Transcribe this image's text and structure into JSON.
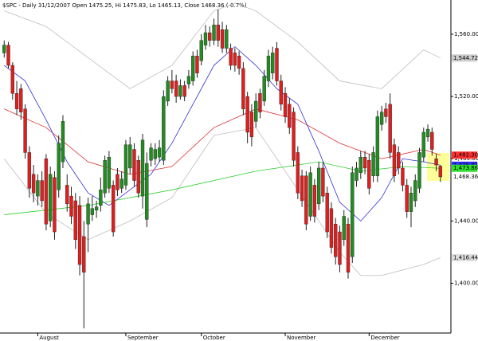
{
  "chart_data": {
    "type": "candlestick",
    "title": "$SPC - Daily 31/12/2007 Open 1475.25, Hi 1475.83, Lo 1465.13, Close 1468.36 (-0.7%)",
    "up_color": "#228b22",
    "down_color": "#dd1f1f",
    "open": [
      1548,
      1553,
      1540,
      1522,
      1525,
      1512,
      1484,
      1470,
      1456,
      1466,
      1480,
      1440,
      1468,
      1460,
      1478,
      1463,
      1456,
      1453,
      1450,
      1430,
      1438,
      1444,
      1447,
      1450,
      1458,
      1461,
      1463,
      1470,
      1461,
      1463,
      1474,
      1486,
      1479,
      1456,
      1441,
      1479,
      1480,
      1481,
      1479,
      1517,
      1530,
      1530,
      1520,
      1527,
      1528,
      1530,
      1546,
      1543,
      1553,
      1561,
      1556,
      1566,
      1563,
      1551,
      1551,
      1548,
      1546,
      1538,
      1520,
      1510,
      1504,
      1522,
      1517,
      1530,
      1535,
      1551,
      1530,
      1522,
      1515,
      1510,
      1484,
      1469,
      1469,
      1443,
      1463,
      1451,
      1474,
      1458,
      1448,
      1438,
      1433,
      1428,
      1438,
      1417,
      1466,
      1471,
      1481,
      1479,
      1469,
      1469,
      1502,
      1512,
      1515,
      1489,
      1484,
      1474,
      1463,
      1446,
      1453,
      1461,
      1481,
      1494,
      1497,
      1480,
      1475.25
    ],
    "high": [
      1556,
      1555,
      1542,
      1530,
      1528,
      1515,
      1488,
      1476,
      1470,
      1472,
      1483,
      1475,
      1472,
      1495,
      1508,
      1470,
      1462,
      1458,
      1456,
      1440,
      1455,
      1456,
      1453,
      1468,
      1482,
      1485,
      1466,
      1474,
      1472,
      1492,
      1494,
      1490,
      1482,
      1496,
      1484,
      1490,
      1490,
      1492,
      1524,
      1533,
      1537,
      1534,
      1531,
      1530,
      1537,
      1549,
      1550,
      1560,
      1566,
      1565,
      1570,
      1576,
      1568,
      1566,
      1554,
      1551,
      1549,
      1542,
      1523,
      1515,
      1522,
      1525,
      1537,
      1550,
      1552,
      1555,
      1534,
      1526,
      1519,
      1513,
      1488,
      1473,
      1472,
      1475,
      1467,
      1478,
      1478,
      1462,
      1452,
      1442,
      1437,
      1447,
      1442,
      1475,
      1478,
      1485,
      1485,
      1483,
      1488,
      1511,
      1514,
      1516,
      1522,
      1493,
      1488,
      1478,
      1467,
      1462,
      1470,
      1487,
      1500,
      1502,
      1500,
      1483,
      1475.83
    ],
    "low": [
      1545,
      1538,
      1518,
      1508,
      1505,
      1480,
      1455,
      1452,
      1450,
      1449,
      1434,
      1436,
      1428,
      1455,
      1474,
      1446,
      1438,
      1422,
      1405,
      1371,
      1420,
      1440,
      1442,
      1446,
      1455,
      1458,
      1430,
      1456,
      1458,
      1460,
      1470,
      1462,
      1455,
      1448,
      1436,
      1475,
      1476,
      1478,
      1476,
      1514,
      1522,
      1516,
      1518,
      1517,
      1525,
      1527,
      1532,
      1540,
      1550,
      1552,
      1553,
      1552,
      1548,
      1548,
      1537,
      1536,
      1534,
      1508,
      1490,
      1488,
      1500,
      1506,
      1514,
      1526,
      1531,
      1527,
      1511,
      1503,
      1496,
      1475,
      1454,
      1449,
      1434,
      1440,
      1439,
      1447,
      1452,
      1429,
      1419,
      1412,
      1407,
      1424,
      1403,
      1413,
      1462,
      1467,
      1470,
      1457,
      1465,
      1465,
      1498,
      1503,
      1480,
      1465,
      1470,
      1459,
      1442,
      1436,
      1449,
      1458,
      1478,
      1491,
      1482,
      1472,
      1465.13
    ],
    "close": [
      1553,
      1540,
      1522,
      1512,
      1510,
      1484,
      1461,
      1458,
      1466,
      1453,
      1438,
      1470,
      1433,
      1490,
      1504,
      1451,
      1443,
      1428,
      1412,
      1407,
      1451,
      1448,
      1449,
      1460,
      1479,
      1481,
      1433,
      1460,
      1467,
      1489,
      1489,
      1466,
      1458,
      1492,
      1477,
      1487,
      1486,
      1487,
      1520,
      1530,
      1525,
      1520,
      1527,
      1520,
      1533,
      1546,
      1535,
      1556,
      1561,
      1556,
      1566,
      1556,
      1551,
      1563,
      1540,
      1540,
      1538,
      1512,
      1497,
      1494,
      1517,
      1510,
      1533,
      1546,
      1548,
      1530,
      1515,
      1507,
      1500,
      1479,
      1458,
      1453,
      1438,
      1471,
      1443,
      1474,
      1456,
      1433,
      1423,
      1417,
      1412,
      1443,
      1407,
      1471,
      1474,
      1481,
      1474,
      1461,
      1484,
      1507,
      1510,
      1507,
      1484,
      1469,
      1474,
      1463,
      1446,
      1458,
      1466,
      1484,
      1497,
      1499,
      1486,
      1476,
      1468.36
    ],
    "lines": [
      {
        "color": "#bdbdbd",
        "x": [
          0,
          10,
          20,
          30,
          40,
          50,
          55,
          60,
          70,
          80,
          90,
          100,
          104
        ],
        "values": [
          1575,
          1565,
          1545,
          1525,
          1540,
          1575,
          1580,
          1575,
          1555,
          1530,
          1525,
          1550,
          1544.72
        ]
      },
      {
        "color": "#bdbdbd",
        "x": [
          0,
          10,
          20,
          30,
          40,
          50,
          60,
          70,
          80,
          85,
          90,
          100,
          104
        ],
        "values": [
          1480,
          1445,
          1428,
          1440,
          1455,
          1495,
          1500,
          1460,
          1420,
          1405,
          1405,
          1412,
          1416.44
        ]
      },
      {
        "color": "#e03030",
        "x": [
          0,
          10,
          20,
          30,
          40,
          50,
          60,
          70,
          80,
          90,
          100,
          104
        ],
        "values": [
          1512,
          1500,
          1478,
          1470,
          1475,
          1500,
          1512,
          1505,
          1490,
          1480,
          1486,
          1482.3
        ]
      },
      {
        "color": "#3030d0",
        "x": [
          0,
          5,
          10,
          15,
          20,
          25,
          30,
          35,
          40,
          45,
          50,
          55,
          60,
          65,
          70,
          75,
          80,
          85,
          90,
          95,
          100,
          104
        ],
        "values": [
          1540,
          1530,
          1505,
          1478,
          1458,
          1450,
          1460,
          1470,
          1490,
          1515,
          1540,
          1552,
          1540,
          1525,
          1515,
          1485,
          1452,
          1440,
          1455,
          1480,
          1478,
          1475.83
        ]
      },
      {
        "color": "#30d030",
        "x": [
          0,
          20,
          40,
          60,
          75,
          85,
          95,
          104
        ],
        "values": [
          1444,
          1450,
          1460,
          1472,
          1478,
          1472,
          1475,
          1473.86
        ]
      }
    ],
    "price_labels": [
      {
        "value": 1544.72,
        "label": "1,544.72",
        "color": "#cccccc"
      },
      {
        "value": 1482.3,
        "label": "1,482.30",
        "color": "#ff3030"
      },
      {
        "value": 1475.83,
        "label": "1,475.83",
        "color": "#3030ff"
      },
      {
        "value": 1473.86,
        "label": "1,473.86",
        "color": "#30e030"
      },
      {
        "value": 1468.36,
        "label": "1,468.36",
        "color": "#ffffff"
      },
      {
        "value": 1416.44,
        "label": "1,416.44",
        "color": "#dddddd"
      }
    ],
    "xlim": [
      -1,
      106.5
    ],
    "xticks": [
      {
        "value": 8,
        "label": "August"
      },
      {
        "value": 29,
        "label": "September"
      },
      {
        "value": 47,
        "label": "October"
      },
      {
        "value": 67,
        "label": "November"
      },
      {
        "value": 87,
        "label": "December"
      }
    ],
    "ylim": [
      1368,
      1582
    ],
    "yticks": [
      {
        "value": 1400,
        "label": "1,400.00"
      },
      {
        "value": 1440,
        "label": "1,440.00"
      },
      {
        "value": 1480,
        "label": "1,480.00"
      },
      {
        "value": 1520,
        "label": "1,520.00"
      },
      {
        "value": 1560,
        "label": "1,560.00"
      }
    ]
  }
}
